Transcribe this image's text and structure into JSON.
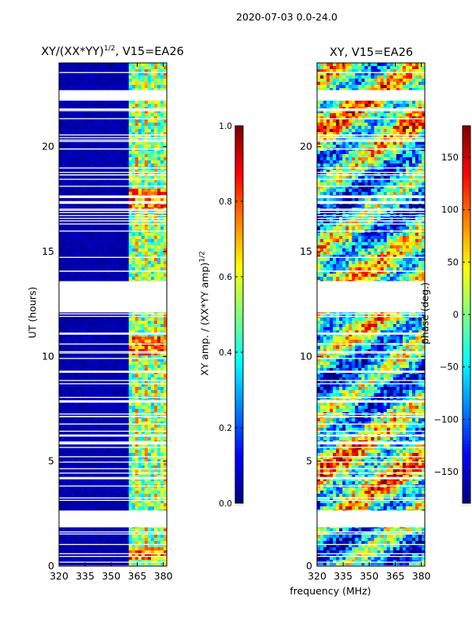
{
  "chart_data": {
    "suptitle": "2020-07-03 0.0-24.0",
    "shared_xlabel": "frequency (MHz)",
    "panels": [
      {
        "type": "heatmap",
        "id": "amp",
        "title_main": "XY/(XX*YY)",
        "title_sup": "1/2",
        "title_tail": ", V15=EA26",
        "ylabel": "UT (hours)",
        "xlim": [
          320,
          382
        ],
        "ylim": [
          0,
          24
        ],
        "xticks": [
          "320",
          "335",
          "350",
          "365",
          "380"
        ],
        "xtick_values": [
          320,
          335,
          350,
          365,
          380
        ],
        "yticks": [
          "0",
          "5",
          "10",
          "15",
          "20"
        ],
        "ytick_values": [
          0,
          5,
          10,
          15,
          20
        ],
        "colormap": "jet",
        "colorbar": {
          "label": "XY amp. / (XX*YY amp)",
          "label_sup": "1/2",
          "range": [
            0.0,
            1.0
          ],
          "ticks": [
            "0.0",
            "0.2",
            "0.4",
            "0.6",
            "0.8",
            "1.0"
          ],
          "tick_values": [
            0.0,
            0.2,
            0.4,
            0.6,
            0.8,
            1.0
          ],
          "underlabel": "......"
        },
        "flagged_ut_ranges": [
          [
            1.85,
            2.65
          ],
          [
            12.1,
            13.55
          ],
          [
            22.2,
            22.7
          ]
        ]
      },
      {
        "type": "heatmap",
        "id": "phase",
        "title_main": "XY, V15=EA26",
        "xlim": [
          320,
          382
        ],
        "ylim": [
          0,
          24
        ],
        "xticks": [
          "320",
          "335",
          "350",
          "365",
          "380"
        ],
        "xtick_values": [
          320,
          335,
          350,
          365,
          380
        ],
        "yticks": [
          "0",
          "5",
          "10",
          "15",
          "20"
        ],
        "ytick_values": [
          0,
          5,
          10,
          15,
          20
        ],
        "colormap": "jet",
        "colorbar": {
          "label": "phase (deg.)",
          "range": [
            -180,
            180
          ],
          "ticks": [
            "−150",
            "−100",
            "−50",
            "0",
            "50",
            "100",
            "150"
          ],
          "tick_values": [
            -150,
            -100,
            -50,
            0,
            50,
            100,
            150
          ],
          "underlabel": "......"
        },
        "flagged_ut_ranges": [
          [
            1.85,
            2.65
          ],
          [
            12.1,
            13.55
          ],
          [
            22.2,
            22.7
          ]
        ]
      }
    ]
  }
}
